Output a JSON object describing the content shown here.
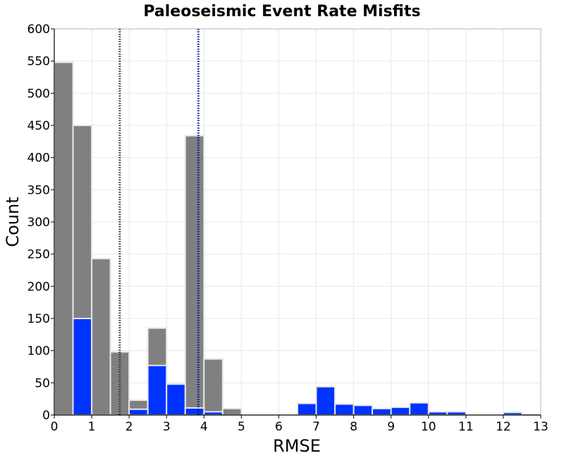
{
  "chart_data": {
    "type": "bar",
    "title": "Paleoseismic Event Rate Misfits",
    "xlabel": "RMSE",
    "ylabel": "Count",
    "xlim": [
      0,
      13
    ],
    "ylim": [
      0,
      600
    ],
    "xticks": [
      "0",
      "1",
      "2",
      "3",
      "4",
      "5",
      "6",
      "7",
      "8",
      "9",
      "10",
      "11",
      "12",
      "13"
    ],
    "yticks": [
      "0",
      "50",
      "100",
      "150",
      "200",
      "250",
      "300",
      "350",
      "400",
      "450",
      "500",
      "550",
      "600"
    ],
    "grid": true,
    "bin_width": 0.5,
    "bin_centers": [
      0.25,
      0.75,
      1.25,
      1.75,
      2.25,
      2.75,
      3.25,
      3.75,
      4.25,
      4.75,
      5.25,
      5.75,
      6.25,
      6.75,
      7.25,
      7.75,
      8.25,
      8.75,
      9.25,
      9.75,
      10.25,
      10.75,
      11.25,
      11.75,
      12.25,
      12.75
    ],
    "series": [
      {
        "color": "#808080",
        "values": [
          548,
          450,
          243,
          98,
          23,
          135,
          0,
          434,
          87,
          10,
          0,
          0,
          0,
          0,
          0,
          0,
          0,
          0,
          0,
          0,
          0,
          0,
          0,
          0,
          0,
          0
        ]
      },
      {
        "color": "#0033ff",
        "values": [
          0,
          150,
          0,
          0,
          9,
          77,
          48,
          11,
          5,
          0,
          0,
          0,
          0,
          18,
          44,
          17,
          15,
          10,
          12,
          19,
          5,
          5,
          0,
          0,
          4,
          1
        ]
      }
    ],
    "reference_lines": [
      {
        "x": 1.75,
        "color": "#333333",
        "style": "dotted"
      },
      {
        "x": 3.85,
        "color": "#001a99",
        "style": "dotted"
      }
    ]
  }
}
